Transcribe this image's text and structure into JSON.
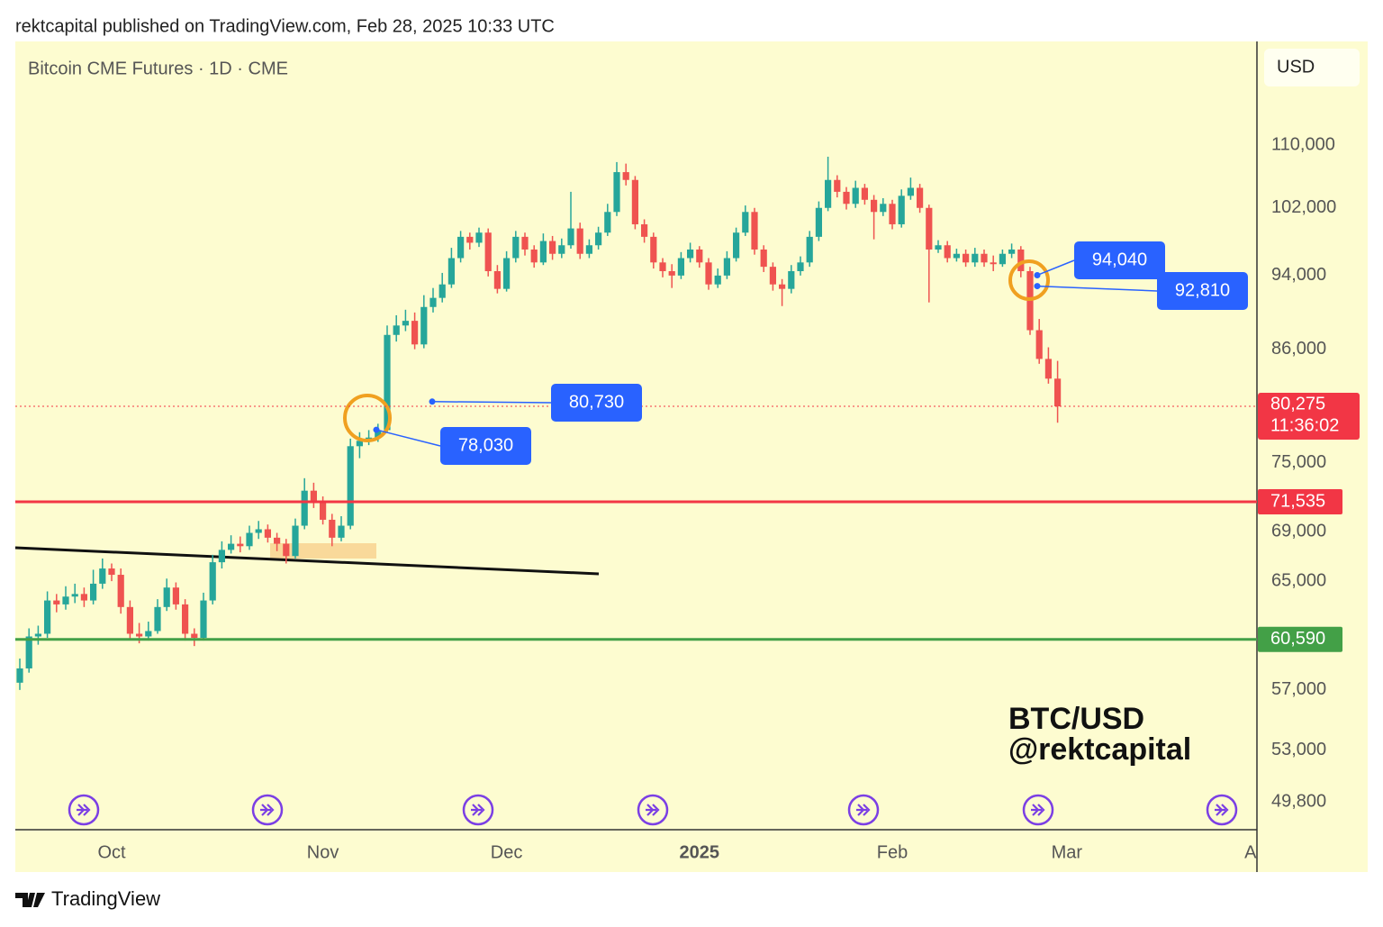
{
  "header": "rektcapital published on TradingView.com, Feb 28, 2025 10:33 UTC",
  "footer": "TradingView",
  "chart_data": {
    "type": "candlestick",
    "title": "Bitcoin CME Futures · 1D · CME",
    "currency": "USD",
    "watermark": [
      "BTC/USD",
      "@rektcapital"
    ],
    "log_scale": true,
    "up_color": "#26a69a",
    "down_color": "#ef5350",
    "ylim": [
      48150,
      124700
    ],
    "yticks": [
      {
        "value": 110000,
        "label": "110,000"
      },
      {
        "value": 102000,
        "label": "102,000"
      },
      {
        "value": 94000,
        "label": "94,000"
      },
      {
        "value": 86000,
        "label": "86,000"
      },
      {
        "value": 75000,
        "label": "75,000"
      },
      {
        "value": 69000,
        "label": "69,000"
      },
      {
        "value": 65000,
        "label": "65,000"
      },
      {
        "value": 57000,
        "label": "57,000"
      },
      {
        "value": 53000,
        "label": "53,000"
      },
      {
        "value": 49800,
        "label": "49,800"
      }
    ],
    "categories": [
      null,
      null,
      null,
      null,
      null,
      null,
      null,
      null,
      null,
      null,
      "Oct",
      null,
      null,
      null,
      null,
      null,
      null,
      null,
      null,
      null,
      null,
      null,
      null,
      null,
      null,
      null,
      null,
      null,
      null,
      null,
      null,
      null,
      null,
      "Nov",
      null,
      null,
      null,
      null,
      null,
      null,
      null,
      null,
      null,
      null,
      null,
      null,
      null,
      null,
      null,
      null,
      null,
      null,
      null,
      "Dec",
      null,
      null,
      null,
      null,
      null,
      null,
      null,
      null,
      null,
      null,
      null,
      null,
      null,
      null,
      null,
      null,
      null,
      null,
      null,
      null,
      "2025",
      null,
      null,
      null,
      null,
      null,
      null,
      null,
      null,
      null,
      null,
      null,
      null,
      null,
      null,
      null,
      null,
      null,
      null,
      null,
      null,
      "Feb",
      null,
      null,
      null,
      null,
      null,
      null,
      null,
      null,
      null,
      null,
      null,
      null,
      null,
      null,
      null,
      null,
      null,
      null,
      "Mar",
      null,
      null,
      null,
      null,
      null,
      null,
      null,
      null,
      null,
      null,
      null,
      null,
      null,
      null,
      null,
      null,
      null,
      null,
      null,
      "A"
    ],
    "ohlc": [
      [
        57500,
        59200,
        57000,
        58500
      ],
      [
        58500,
        61400,
        58200,
        60800
      ],
      [
        60800,
        61600,
        60200,
        61000
      ],
      [
        61000,
        64200,
        60700,
        63500
      ],
      [
        63500,
        64000,
        62600,
        63200
      ],
      [
        63200,
        64600,
        62800,
        63800
      ],
      [
        63800,
        64800,
        63300,
        64000
      ],
      [
        64000,
        64500,
        63000,
        63500
      ],
      [
        63500,
        65900,
        63200,
        64800
      ],
      [
        64800,
        66800,
        64400,
        66000
      ],
      [
        66000,
        66400,
        65000,
        65500
      ],
      [
        65500,
        66000,
        62500,
        63000
      ],
      [
        63000,
        63500,
        60600,
        61000
      ],
      [
        61000,
        61800,
        60300,
        60800
      ],
      [
        60800,
        61900,
        60500,
        61200
      ],
      [
        61200,
        63600,
        61000,
        63000
      ],
      [
        63000,
        65200,
        62700,
        64500
      ],
      [
        64500,
        64900,
        62800,
        63200
      ],
      [
        63200,
        63600,
        60500,
        61000
      ],
      [
        61000,
        61400,
        60100,
        60700
      ],
      [
        60700,
        64100,
        60500,
        63500
      ],
      [
        63500,
        67100,
        63200,
        66500
      ],
      [
        66500,
        68200,
        66000,
        67500
      ],
      [
        67500,
        68700,
        67200,
        68000
      ],
      [
        68000,
        68600,
        67300,
        67800
      ],
      [
        67800,
        69500,
        67500,
        68900
      ],
      [
        68900,
        69900,
        68400,
        69200
      ],
      [
        69200,
        69600,
        68100,
        68500
      ],
      [
        68500,
        68900,
        67400,
        68000
      ],
      [
        68000,
        68400,
        66400,
        67000
      ],
      [
        67000,
        70100,
        66800,
        69500
      ],
      [
        69500,
        73600,
        69200,
        72500
      ],
      [
        72500,
        73200,
        71000,
        71500
      ],
      [
        71500,
        72000,
        69600,
        70000
      ],
      [
        70000,
        70500,
        67800,
        68500
      ],
      [
        68500,
        70300,
        68200,
        69500
      ],
      [
        69500,
        77200,
        69200,
        76500
      ],
      [
        76500,
        77800,
        75400,
        77000
      ],
      [
        77000,
        78000,
        76600,
        77300
      ],
      [
        77300,
        78600,
        76900,
        78000
      ],
      [
        78000,
        88500,
        77800,
        87500
      ],
      [
        87500,
        89600,
        86800,
        88500
      ],
      [
        88500,
        90200,
        87900,
        89000
      ],
      [
        89000,
        89900,
        86000,
        86500
      ],
      [
        86500,
        91800,
        86100,
        90500
      ],
      [
        90500,
        92600,
        89900,
        91500
      ],
      [
        91500,
        94300,
        91000,
        93000
      ],
      [
        93000,
        97200,
        92600,
        96000
      ],
      [
        96000,
        99200,
        95500,
        98500
      ],
      [
        98500,
        99000,
        97000,
        97800
      ],
      [
        97800,
        99600,
        97300,
        99000
      ],
      [
        99000,
        99500,
        93900,
        94500
      ],
      [
        94500,
        95200,
        92000,
        92500
      ],
      [
        92500,
        96800,
        92200,
        96000
      ],
      [
        96000,
        99200,
        95500,
        98500
      ],
      [
        98500,
        99000,
        96300,
        97000
      ],
      [
        97000,
        97500,
        94900,
        95500
      ],
      [
        95500,
        98900,
        95200,
        98000
      ],
      [
        98000,
        98600,
        95800,
        96500
      ],
      [
        96500,
        98300,
        96000,
        97500
      ],
      [
        97500,
        104000,
        97100,
        99500
      ],
      [
        99500,
        100200,
        95900,
        96500
      ],
      [
        96500,
        98200,
        96000,
        97500
      ],
      [
        97500,
        99700,
        97000,
        99000
      ],
      [
        99000,
        102500,
        98600,
        101500
      ],
      [
        101500,
        107800,
        101000,
        106500
      ],
      [
        106500,
        107600,
        104800,
        105500
      ],
      [
        105500,
        106000,
        99400,
        100000
      ],
      [
        100000,
        100600,
        97800,
        98500
      ],
      [
        98500,
        99000,
        94800,
        95500
      ],
      [
        95500,
        96000,
        93800,
        94500
      ],
      [
        94500,
        95300,
        92600,
        94000
      ],
      [
        94000,
        96700,
        93600,
        96000
      ],
      [
        96000,
        97800,
        95500,
        97000
      ],
      [
        97000,
        97400,
        94900,
        95500
      ],
      [
        95500,
        96000,
        92400,
        93000
      ],
      [
        93000,
        94800,
        92600,
        94000
      ],
      [
        94000,
        96800,
        93600,
        96000
      ],
      [
        96000,
        99600,
        95600,
        99000
      ],
      [
        99000,
        102300,
        98600,
        101500
      ],
      [
        101500,
        102000,
        96400,
        97000
      ],
      [
        97000,
        97500,
        94400,
        95000
      ],
      [
        95000,
        95500,
        92300,
        93000
      ],
      [
        93000,
        93600,
        90600,
        92500
      ],
      [
        92500,
        95200,
        92000,
        94500
      ],
      [
        94500,
        96200,
        94000,
        95500
      ],
      [
        95500,
        99200,
        95000,
        98500
      ],
      [
        98500,
        102800,
        98000,
        102000
      ],
      [
        102000,
        108500,
        101600,
        105500
      ],
      [
        105500,
        106100,
        103300,
        104000
      ],
      [
        104000,
        104600,
        101800,
        102500
      ],
      [
        102500,
        105400,
        102000,
        104500
      ],
      [
        104500,
        105000,
        102400,
        103000
      ],
      [
        103000,
        103600,
        98200,
        101500
      ],
      [
        101500,
        103200,
        101000,
        102500
      ],
      [
        102500,
        103000,
        99400,
        100000
      ],
      [
        100000,
        104300,
        99600,
        103500
      ],
      [
        103500,
        105800,
        103000,
        104500
      ],
      [
        104500,
        105000,
        101400,
        102000
      ],
      [
        102000,
        102400,
        91000,
        97000
      ],
      [
        97000,
        98100,
        96600,
        97500
      ],
      [
        97500,
        98000,
        95500,
        96000
      ],
      [
        96000,
        97100,
        95600,
        96500
      ],
      [
        96500,
        97000,
        95000,
        95500
      ],
      [
        95500,
        97200,
        95000,
        96500
      ],
      [
        96500,
        97000,
        95000,
        95500
      ],
      [
        95500,
        96300,
        94500,
        95300
      ],
      [
        95300,
        97000,
        95000,
        96500
      ],
      [
        96500,
        97700,
        96000,
        97000
      ],
      [
        97000,
        97400,
        93800,
        94500
      ],
      [
        94500,
        95000,
        87500,
        88000
      ],
      [
        88000,
        89200,
        84500,
        85000
      ],
      [
        85000,
        86200,
        82500,
        83000
      ],
      [
        83000,
        84800,
        78700,
        80275
      ],
      null,
      null,
      null,
      null,
      null,
      null,
      null,
      null,
      null,
      null,
      null,
      null,
      null,
      null,
      null,
      null,
      null,
      null,
      null,
      null,
      null
    ],
    "levels": [
      {
        "value": 71535,
        "label": "71,535",
        "color": "#f23645"
      },
      {
        "value": 60590,
        "label": "60,590",
        "color": "#43a047"
      }
    ],
    "last_price": {
      "value": 80275,
      "label": "80,275",
      "countdown": "11:36:02",
      "color": "#f23645"
    },
    "callouts": [
      {
        "value": 80730,
        "label": "80,730"
      },
      {
        "value": 78030,
        "label": "78,030"
      },
      {
        "value": 94040,
        "label": "94,040"
      },
      {
        "value": 92810,
        "label": "92,810"
      }
    ]
  }
}
